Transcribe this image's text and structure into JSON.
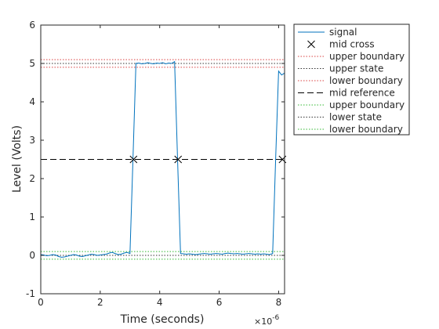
{
  "chart_data": {
    "type": "line",
    "title": "",
    "xlabel": "Time (seconds)",
    "ylabel": "Level (Volts)",
    "x_exponent_label": "×10",
    "x_exponent_power": "-6",
    "xlim": [
      0,
      8.2
    ],
    "ylim": [
      -1,
      6
    ],
    "x_ticks": [
      "0",
      "2",
      "4",
      "6",
      "8"
    ],
    "y_ticks": [
      "-1",
      "0",
      "1",
      "2",
      "3",
      "4",
      "5",
      "6"
    ],
    "x_units_scale": "1e-6",
    "grid": false,
    "legend_position": "outside-top-right",
    "series": [
      {
        "name": "signal",
        "style": "solid",
        "color": "#0072BD",
        "x": [
          0.0,
          0.1,
          0.2,
          0.3,
          0.4,
          0.5,
          0.6,
          0.7,
          0.8,
          0.9,
          1.0,
          1.1,
          1.2,
          1.3,
          1.4,
          1.5,
          1.6,
          1.7,
          1.8,
          1.9,
          2.0,
          2.1,
          2.2,
          2.3,
          2.4,
          2.5,
          2.6,
          2.7,
          2.8,
          2.9,
          3.0,
          3.1,
          3.2,
          3.3,
          3.4,
          3.5,
          3.6,
          3.7,
          3.8,
          3.9,
          4.0,
          4.1,
          4.2,
          4.3,
          4.4,
          4.5,
          4.6,
          4.7,
          4.8,
          4.9,
          5.0,
          5.1,
          5.2,
          5.3,
          5.4,
          5.5,
          5.6,
          5.7,
          5.8,
          5.9,
          6.0,
          6.1,
          6.2,
          6.3,
          6.4,
          6.5,
          6.6,
          6.7,
          6.8,
          6.9,
          7.0,
          7.1,
          7.2,
          7.3,
          7.4,
          7.5,
          7.6,
          7.7,
          7.8,
          7.9,
          8.0,
          8.1,
          8.2
        ],
        "y": [
          0.02,
          0.01,
          -0.01,
          0.0,
          0.02,
          0.01,
          -0.03,
          -0.05,
          -0.04,
          -0.02,
          0.0,
          0.02,
          0.01,
          -0.02,
          -0.03,
          -0.01,
          0.01,
          0.03,
          0.02,
          0.0,
          0.01,
          0.02,
          0.03,
          0.06,
          0.08,
          0.05,
          0.02,
          0.03,
          0.06,
          0.08,
          0.05,
          2.5,
          5.0,
          5.01,
          4.99,
          5.0,
          5.02,
          5.0,
          4.99,
          5.01,
          5.0,
          5.02,
          4.99,
          5.01,
          5.0,
          5.05,
          2.5,
          0.05,
          0.04,
          0.03,
          0.04,
          0.03,
          0.02,
          0.03,
          0.04,
          0.05,
          0.04,
          0.03,
          0.04,
          0.05,
          0.04,
          0.03,
          0.05,
          0.06,
          0.05,
          0.04,
          0.05,
          0.04,
          0.03,
          0.04,
          0.05,
          0.04,
          0.03,
          0.04,
          0.03,
          0.04,
          0.03,
          0.02,
          0.05,
          2.5,
          4.8,
          4.7,
          4.75
        ]
      }
    ],
    "mid_cross": {
      "name": "mid cross",
      "x": [
        3.12,
        4.62,
        8.13
      ],
      "y": [
        2.5,
        2.5,
        2.5
      ]
    },
    "reference_lines": [
      {
        "name": "upper boundary",
        "y": 5.1,
        "style": "dotted",
        "color": "#D94040"
      },
      {
        "name": "upper state",
        "y": 5.0,
        "style": "dotted",
        "color": "#333333"
      },
      {
        "name": "lower boundary",
        "y": 4.9,
        "style": "dotted",
        "color": "#D94040"
      },
      {
        "name": "mid reference",
        "y": 2.5,
        "style": "dashed",
        "color": "#000000"
      },
      {
        "name": "upper boundary",
        "y": 0.1,
        "style": "dotted",
        "color": "#33B833"
      },
      {
        "name": "lower state",
        "y": 0.0,
        "style": "dotted",
        "color": "#333333"
      },
      {
        "name": "lower boundary",
        "y": -0.1,
        "style": "dotted",
        "color": "#33B833"
      }
    ],
    "legend": [
      {
        "label": "signal",
        "kind": "line",
        "style": "solid",
        "color": "#0072BD"
      },
      {
        "label": "mid cross",
        "kind": "marker",
        "marker": "x",
        "color": "#000000"
      },
      {
        "label": "upper boundary",
        "kind": "line",
        "style": "dotted",
        "color": "#D94040"
      },
      {
        "label": "upper state",
        "kind": "line",
        "style": "dotted",
        "color": "#333333"
      },
      {
        "label": "lower boundary",
        "kind": "line",
        "style": "dotted",
        "color": "#D94040"
      },
      {
        "label": "mid reference",
        "kind": "line",
        "style": "dashed",
        "color": "#000000"
      },
      {
        "label": "upper boundary",
        "kind": "line",
        "style": "dotted",
        "color": "#33B833"
      },
      {
        "label": "lower state",
        "kind": "line",
        "style": "dotted",
        "color": "#333333"
      },
      {
        "label": "lower boundary",
        "kind": "line",
        "style": "dotted",
        "color": "#33B833"
      }
    ]
  }
}
